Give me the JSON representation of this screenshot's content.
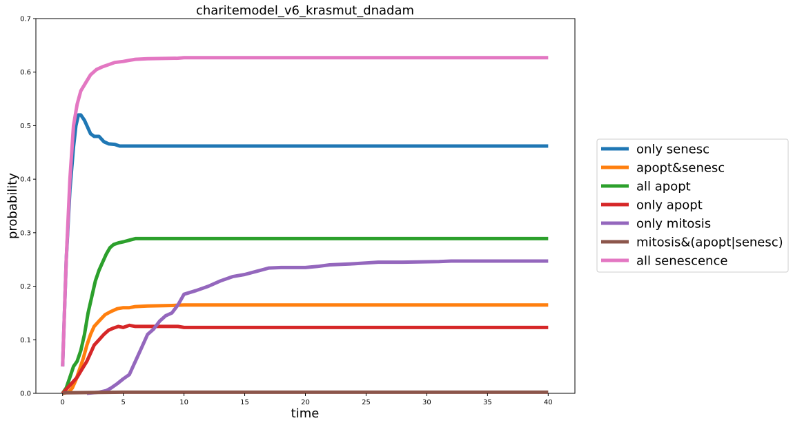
{
  "chart_data": {
    "type": "line",
    "title": "charitemodel_v6_krasmut_dnadam",
    "xlabel": "time",
    "ylabel": "probability",
    "xlim": [
      -2.2,
      42.2
    ],
    "ylim": [
      0,
      0.7
    ],
    "xticks": [
      "0",
      "5",
      "10",
      "15",
      "20",
      "25",
      "30",
      "35",
      "40"
    ],
    "yticks": [
      "0.0",
      "0.1",
      "0.2",
      "0.3",
      "0.4",
      "0.5",
      "0.6",
      "0.7"
    ],
    "grid": false,
    "legend_position": "right-outside",
    "series": [
      {
        "name": "only senesc",
        "color": "#1f77b4",
        "points": [
          [
            0,
            0.05
          ],
          [
            0.3,
            0.25
          ],
          [
            0.6,
            0.38
          ],
          [
            0.9,
            0.46
          ],
          [
            1.1,
            0.5
          ],
          [
            1.3,
            0.52
          ],
          [
            1.5,
            0.52
          ],
          [
            1.8,
            0.51
          ],
          [
            2.0,
            0.5
          ],
          [
            2.3,
            0.485
          ],
          [
            2.6,
            0.48
          ],
          [
            3.0,
            0.48
          ],
          [
            3.4,
            0.47
          ],
          [
            3.8,
            0.466
          ],
          [
            4.3,
            0.465
          ],
          [
            4.7,
            0.462
          ],
          [
            5.5,
            0.462
          ],
          [
            10,
            0.462
          ],
          [
            20,
            0.462
          ],
          [
            30,
            0.462
          ],
          [
            40,
            0.462
          ]
        ]
      },
      {
        "name": "apopt&senesc",
        "color": "#ff7f0e",
        "points": [
          [
            0,
            0
          ],
          [
            0.5,
            0.002
          ],
          [
            0.8,
            0.01
          ],
          [
            1.1,
            0.025
          ],
          [
            1.4,
            0.045
          ],
          [
            1.7,
            0.065
          ],
          [
            2.0,
            0.09
          ],
          [
            2.3,
            0.11
          ],
          [
            2.6,
            0.125
          ],
          [
            3.0,
            0.135
          ],
          [
            3.5,
            0.147
          ],
          [
            4.0,
            0.153
          ],
          [
            4.5,
            0.158
          ],
          [
            5.0,
            0.16
          ],
          [
            5.5,
            0.16
          ],
          [
            6.0,
            0.162
          ],
          [
            7.0,
            0.163
          ],
          [
            9.0,
            0.164
          ],
          [
            10,
            0.165
          ],
          [
            20,
            0.165
          ],
          [
            30,
            0.165
          ],
          [
            40,
            0.165
          ]
        ]
      },
      {
        "name": "all apopt",
        "color": "#2ca02c",
        "points": [
          [
            0,
            0
          ],
          [
            0.3,
            0.01
          ],
          [
            0.6,
            0.03
          ],
          [
            0.9,
            0.05
          ],
          [
            1.2,
            0.06
          ],
          [
            1.5,
            0.08
          ],
          [
            1.8,
            0.11
          ],
          [
            2.1,
            0.15
          ],
          [
            2.4,
            0.18
          ],
          [
            2.7,
            0.21
          ],
          [
            3.0,
            0.23
          ],
          [
            3.3,
            0.245
          ],
          [
            3.6,
            0.26
          ],
          [
            3.9,
            0.272
          ],
          [
            4.2,
            0.278
          ],
          [
            4.6,
            0.281
          ],
          [
            5.0,
            0.283
          ],
          [
            5.5,
            0.286
          ],
          [
            6.0,
            0.289
          ],
          [
            7,
            0.289
          ],
          [
            10,
            0.289
          ],
          [
            20,
            0.289
          ],
          [
            30,
            0.289
          ],
          [
            40,
            0.289
          ]
        ]
      },
      {
        "name": "only apopt",
        "color": "#d62728",
        "points": [
          [
            0,
            0
          ],
          [
            0.4,
            0.01
          ],
          [
            0.8,
            0.02
          ],
          [
            1.2,
            0.03
          ],
          [
            1.6,
            0.045
          ],
          [
            2.0,
            0.06
          ],
          [
            2.3,
            0.075
          ],
          [
            2.6,
            0.09
          ],
          [
            3.0,
            0.1
          ],
          [
            3.4,
            0.11
          ],
          [
            3.8,
            0.118
          ],
          [
            4.2,
            0.122
          ],
          [
            4.6,
            0.125
          ],
          [
            5.0,
            0.123
          ],
          [
            5.5,
            0.127
          ],
          [
            6.0,
            0.125
          ],
          [
            7.0,
            0.125
          ],
          [
            9.5,
            0.125
          ],
          [
            10,
            0.123
          ],
          [
            20,
            0.123
          ],
          [
            30,
            0.123
          ],
          [
            40,
            0.123
          ]
        ]
      },
      {
        "name": "only mitosis",
        "color": "#9467bd",
        "points": [
          [
            2,
            0
          ],
          [
            3,
            0.002
          ],
          [
            3.6,
            0.005
          ],
          [
            4.0,
            0.01
          ],
          [
            4.5,
            0.018
          ],
          [
            5.0,
            0.027
          ],
          [
            5.5,
            0.035
          ],
          [
            5.8,
            0.05
          ],
          [
            6.2,
            0.07
          ],
          [
            6.6,
            0.09
          ],
          [
            7.0,
            0.11
          ],
          [
            7.5,
            0.12
          ],
          [
            8.0,
            0.135
          ],
          [
            8.5,
            0.145
          ],
          [
            9.0,
            0.15
          ],
          [
            9.5,
            0.165
          ],
          [
            10,
            0.185
          ],
          [
            11,
            0.192
          ],
          [
            12,
            0.2
          ],
          [
            13,
            0.21
          ],
          [
            14,
            0.218
          ],
          [
            15,
            0.222
          ],
          [
            16,
            0.228
          ],
          [
            17,
            0.234
          ],
          [
            18,
            0.235
          ],
          [
            20,
            0.235
          ],
          [
            21,
            0.237
          ],
          [
            22,
            0.24
          ],
          [
            24,
            0.242
          ],
          [
            26,
            0.245
          ],
          [
            28,
            0.245
          ],
          [
            31,
            0.246
          ],
          [
            32,
            0.247
          ],
          [
            35,
            0.247
          ],
          [
            40,
            0.247
          ]
        ]
      },
      {
        "name": "mitosis&(apopt|senesc)",
        "color": "#8c564b",
        "points": [
          [
            0,
            0.001
          ],
          [
            5,
            0.002
          ],
          [
            10,
            0.002
          ],
          [
            20,
            0.002
          ],
          [
            30,
            0.002
          ],
          [
            40,
            0.002
          ]
        ]
      },
      {
        "name": "all senescence",
        "color": "#e377c2",
        "points": [
          [
            0,
            0.05
          ],
          [
            0.3,
            0.25
          ],
          [
            0.6,
            0.4
          ],
          [
            0.9,
            0.5
          ],
          [
            1.2,
            0.54
          ],
          [
            1.5,
            0.565
          ],
          [
            1.9,
            0.58
          ],
          [
            2.3,
            0.595
          ],
          [
            2.8,
            0.605
          ],
          [
            3.3,
            0.61
          ],
          [
            3.8,
            0.614
          ],
          [
            4.3,
            0.618
          ],
          [
            5.0,
            0.62
          ],
          [
            5.5,
            0.622
          ],
          [
            6.0,
            0.624
          ],
          [
            7.0,
            0.625
          ],
          [
            9.5,
            0.626
          ],
          [
            10,
            0.627
          ],
          [
            20,
            0.627
          ],
          [
            30,
            0.627
          ],
          [
            40,
            0.627
          ]
        ]
      }
    ]
  }
}
